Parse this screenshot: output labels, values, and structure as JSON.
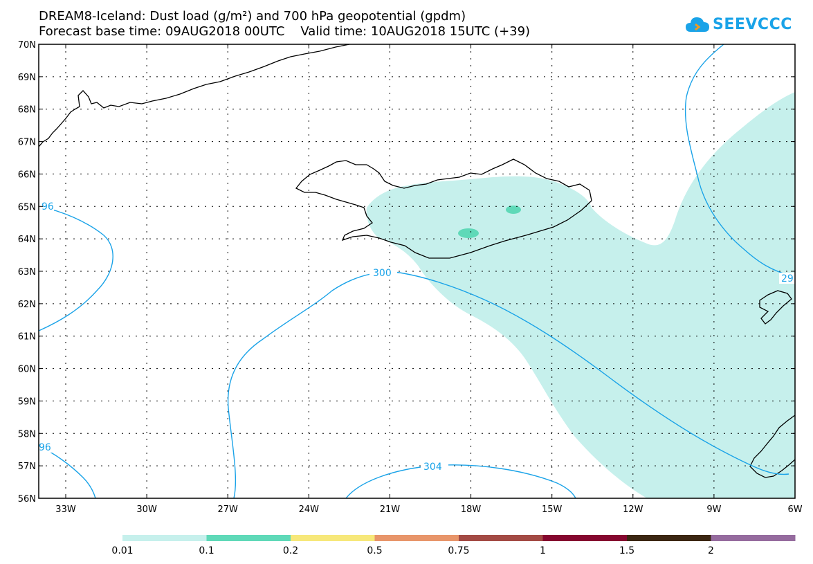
{
  "header": {
    "title_line1": "DREAM8-Iceland: Dust load (g/m²) and 700 hPa geopotential (gpdm)",
    "title_line2": "Forecast base time: 09AUG2018 00UTC    Valid time: 10AUG2018 15UTC (+39)"
  },
  "logo": {
    "text": "SEEVCCC",
    "color": "#1aa3e8"
  },
  "map": {
    "lat_labels": [
      "70N",
      "69N",
      "68N",
      "67N",
      "66N",
      "65N",
      "64N",
      "63N",
      "62N",
      "61N",
      "60N",
      "59N",
      "58N",
      "57N",
      "56N"
    ],
    "lon_labels": [
      "33W",
      "30W",
      "27W",
      "24W",
      "21W",
      "18W",
      "15W",
      "12W",
      "9W",
      "6W"
    ],
    "contour_labels": [
      "96",
      "300",
      "96",
      "304",
      "29"
    ],
    "contour_color": "#1aa3e8",
    "dust_colors": {
      "light": "#c6f0ec",
      "medium": "#5fd9b8"
    }
  },
  "colorbar": {
    "levels": [
      "0.01",
      "0.1",
      "0.2",
      "0.5",
      "0.75",
      "1",
      "1.5",
      "2"
    ],
    "colors": [
      "#c6f0ec",
      "#5fd9b8",
      "#f7e87a",
      "#e8956a",
      "#a34a44",
      "#85072f",
      "#3b2612",
      "#956b9e"
    ]
  }
}
